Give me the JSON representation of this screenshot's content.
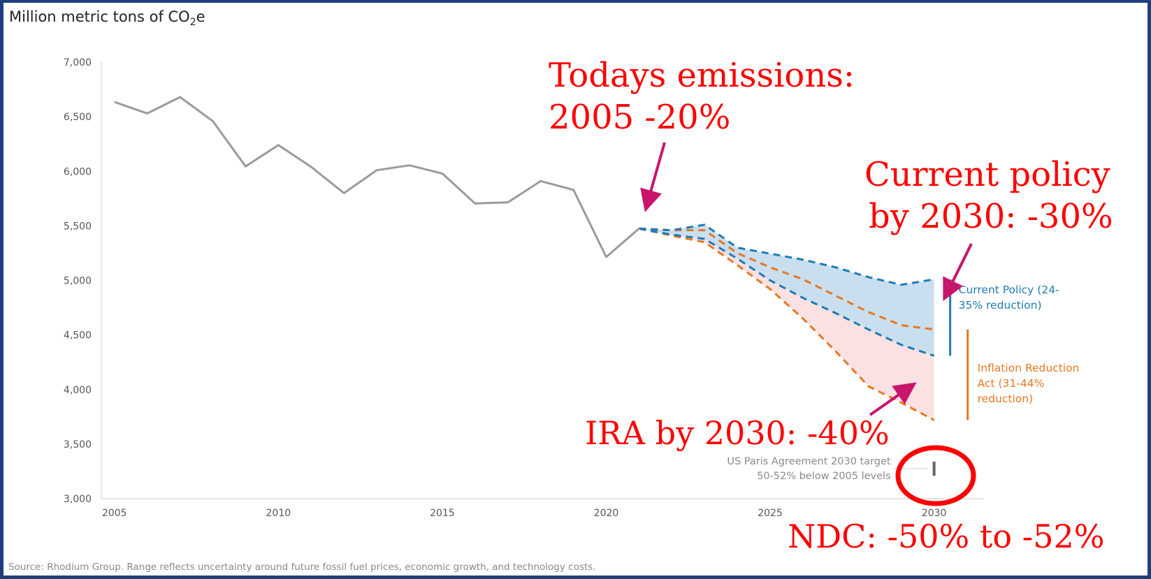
{
  "chart_data": {
    "type": "line",
    "ylabel_text": "Million metric tons of CO",
    "ylabel_sub": "2",
    "ylabel_tail": "e",
    "y_ticks": [
      "7,000",
      "6,500",
      "6,000",
      "5,500",
      "5,000",
      "4,500",
      "4,000",
      "3,500",
      "3,000"
    ],
    "x_ticks": [
      "2005",
      "2010",
      "2015",
      "2020",
      "2025",
      "2030"
    ],
    "ylim": [
      3000,
      7000
    ],
    "xlim": [
      2004.6,
      2031.5
    ],
    "historical": {
      "x": [
        2005,
        2006,
        2007,
        2008,
        2009,
        2010,
        2011,
        2012,
        2013,
        2014,
        2015,
        2016,
        2017,
        2018,
        2019,
        2020,
        2021
      ],
      "y": [
        6635,
        6530,
        6680,
        6460,
        6045,
        6240,
        6040,
        5800,
        6010,
        6055,
        5980,
        5705,
        5715,
        5910,
        5830,
        5215,
        5475
      ],
      "color": "#9a9a9a"
    },
    "current_policy": {
      "color": "#1f7bb4",
      "fill": "#c9dff0",
      "upper": {
        "x": [
          2021,
          2022,
          2023,
          2024,
          2025,
          2026,
          2027,
          2028,
          2029,
          2030
        ],
        "y": [
          5475,
          5460,
          5510,
          5300,
          5245,
          5190,
          5120,
          5030,
          4960,
          5010
        ]
      },
      "lower": {
        "x": [
          2021,
          2022,
          2023,
          2024,
          2025,
          2026,
          2027,
          2028,
          2029,
          2030
        ],
        "y": [
          5475,
          5420,
          5380,
          5200,
          5000,
          4840,
          4700,
          4550,
          4410,
          4310
        ]
      }
    },
    "ira": {
      "color": "#e87722",
      "fill": "#fbe1e1",
      "upper": {
        "x": [
          2021,
          2022,
          2023,
          2024,
          2025,
          2026,
          2027,
          2028,
          2029,
          2030
        ],
        "y": [
          5475,
          5460,
          5460,
          5250,
          5120,
          5010,
          4860,
          4710,
          4590,
          4550
        ]
      },
      "lower": {
        "x": [
          2021,
          2022,
          2023,
          2024,
          2025,
          2026,
          2027,
          2028,
          2029,
          2030
        ],
        "y": [
          5475,
          5410,
          5350,
          5140,
          4920,
          4650,
          4350,
          4030,
          3880,
          3720
        ]
      }
    },
    "paris_target": {
      "x": 2030,
      "low": 3210,
      "high": 3340,
      "color": "#666666"
    },
    "legend": {
      "current_policy_lines": [
        "Current Policy (24-",
        "35% reduction)"
      ],
      "ira_lines": [
        "Inflation Reduction",
        "Act (31-44%",
        "reduction)"
      ],
      "paris_lines": [
        "US Paris Agreement 2030 target",
        "50-52% below 2005 levels"
      ]
    },
    "source": "Source: Rhodium Group. Range reflects uncertainty around future fossil fuel prices, economic growth, and technology costs."
  },
  "annotations": {
    "todays": [
      "Todays emissions:",
      "2005 -20%"
    ],
    "current": [
      "Current policy",
      "by 2030: -30%"
    ],
    "ira": "IRA by 2030: -40%",
    "ndc": "NDC: -50% to -52%",
    "arrow_color": "#c8156c",
    "text_color": "#ff0000"
  }
}
